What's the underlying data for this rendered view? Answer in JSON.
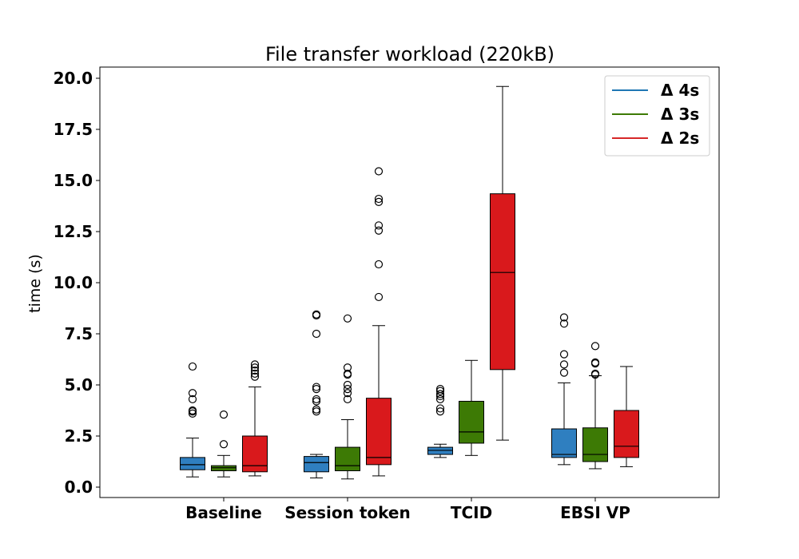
{
  "chart_data": {
    "type": "boxplot",
    "title": "File transfer workload (220kB)",
    "xlabel": "",
    "ylabel": "time (s)",
    "ylim": [
      -0.5,
      20.5
    ],
    "yticks": [
      "0.0",
      "2.5",
      "5.0",
      "7.5",
      "10.0",
      "12.5",
      "15.0",
      "17.5",
      "20.0"
    ],
    "categories": [
      "Baseline",
      "Session token",
      "TCID",
      "EBSI VP"
    ],
    "legend": {
      "position": "top-right"
    },
    "series": [
      {
        "name": "Δ 4s",
        "color": "#2f7fc0",
        "legend_color": "#1f77b4",
        "boxes": [
          {
            "whislo": 0.5,
            "q1": 0.85,
            "med": 1.1,
            "q3": 1.45,
            "whishi": 2.4,
            "fliers": [
              3.6,
              3.7,
              3.75,
              4.3,
              4.6,
              5.9
            ]
          },
          {
            "whislo": 0.45,
            "q1": 0.75,
            "med": 1.2,
            "q3": 1.5,
            "whishi": 1.6,
            "fliers": [
              3.7,
              3.8,
              4.2,
              4.3,
              4.8,
              4.9,
              7.5,
              8.4,
              8.45
            ]
          },
          {
            "whislo": 1.45,
            "q1": 1.6,
            "med": 1.8,
            "q3": 1.95,
            "whishi": 2.1,
            "fliers": [
              3.7,
              3.85,
              4.3,
              4.45,
              4.55,
              4.7,
              4.8
            ]
          },
          {
            "whislo": 1.1,
            "q1": 1.45,
            "med": 1.6,
            "q3": 2.85,
            "whishi": 5.1,
            "fliers": [
              5.6,
              6.0,
              6.5,
              8.0,
              8.3
            ]
          }
        ]
      },
      {
        "name": "Δ 3s",
        "color": "#3d7a05",
        "legend_color": "#3d7a05",
        "boxes": [
          {
            "whislo": 0.5,
            "q1": 0.8,
            "med": 0.95,
            "q3": 1.05,
            "whishi": 1.55,
            "fliers": [
              2.1,
              3.55
            ]
          },
          {
            "whislo": 0.4,
            "q1": 0.8,
            "med": 1.05,
            "q3": 1.95,
            "whishi": 3.3,
            "fliers": [
              4.3,
              4.6,
              4.8,
              5.0,
              5.5,
              5.55,
              5.85,
              8.25
            ]
          },
          {
            "whislo": 1.55,
            "q1": 2.15,
            "med": 2.7,
            "q3": 4.2,
            "whishi": 6.2,
            "fliers": []
          },
          {
            "whislo": 0.9,
            "q1": 1.25,
            "med": 1.6,
            "q3": 2.9,
            "whishi": 5.45,
            "fliers": [
              5.5,
              5.55,
              6.05,
              6.1,
              6.9
            ]
          }
        ]
      },
      {
        "name": "Δ 2s",
        "color": "#d9191c",
        "legend_color": "#d62728",
        "boxes": [
          {
            "whislo": 0.55,
            "q1": 0.75,
            "med": 1.05,
            "q3": 2.5,
            "whishi": 4.9,
            "fliers": [
              5.4,
              5.55,
              5.7,
              5.85,
              6.0
            ]
          },
          {
            "whislo": 0.55,
            "q1": 1.1,
            "med": 1.45,
            "q3": 4.35,
            "whishi": 7.9,
            "fliers": [
              9.3,
              10.9,
              12.55,
              12.8,
              13.95,
              14.1,
              15.45
            ]
          },
          {
            "whislo": 2.3,
            "q1": 5.75,
            "med": 10.5,
            "q3": 14.35,
            "whishi": 19.6,
            "fliers": []
          },
          {
            "whislo": 1.0,
            "q1": 1.45,
            "med": 2.0,
            "q3": 3.75,
            "whishi": 5.9,
            "fliers": []
          }
        ]
      }
    ]
  }
}
